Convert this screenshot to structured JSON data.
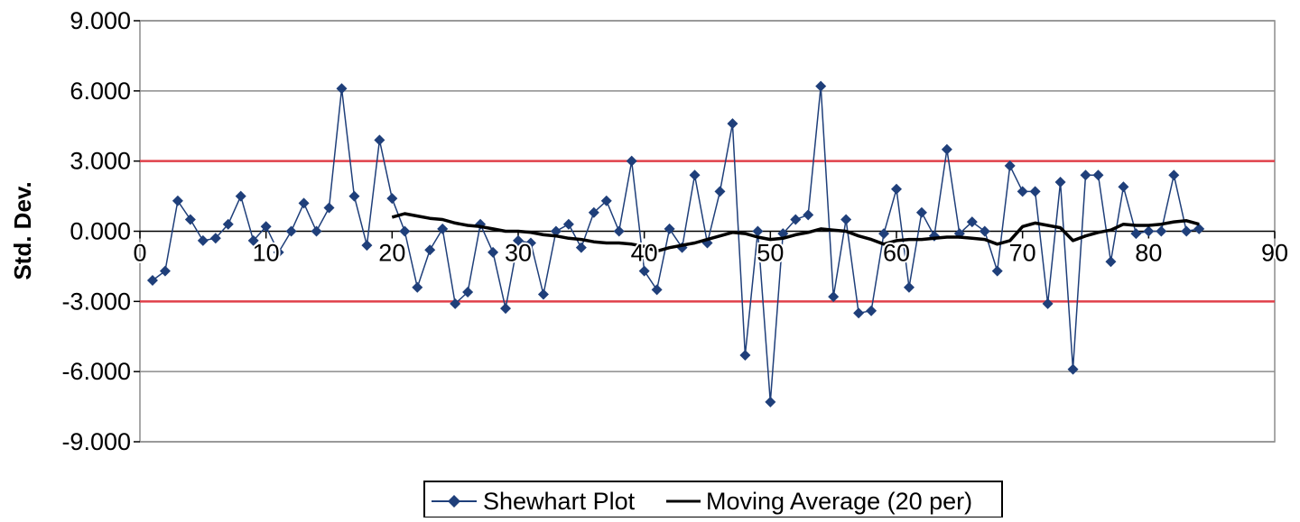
{
  "chart_data": {
    "type": "line",
    "title": "",
    "xlabel": "",
    "ylabel": "Std. Dev.",
    "xlim": [
      0,
      90
    ],
    "ylim": [
      -9,
      9
    ],
    "x_ticks": [
      0,
      10,
      20,
      30,
      40,
      50,
      60,
      70,
      80,
      90
    ],
    "x_tick_labels": [
      "0",
      "10",
      "20",
      "30",
      "40",
      "50",
      "60",
      "70",
      "80",
      "90"
    ],
    "y_ticks": [
      9,
      6,
      3,
      0,
      -3,
      -6,
      -9
    ],
    "y_tick_labels": [
      "9.000",
      "6.000",
      "3.000",
      "0.000",
      "-3.000",
      "-6.000",
      "-9.000"
    ],
    "grid": "horizontal",
    "legend_position": "bottom",
    "control_limits": [
      {
        "value": 3.0,
        "color": "#e0404a"
      },
      {
        "value": -3.0,
        "color": "#e0404a"
      }
    ],
    "series": [
      {
        "name": "Shewhart Plot",
        "color": "#1f3f7a",
        "marker": "diamond",
        "x": [
          1,
          2,
          3,
          4,
          5,
          6,
          7,
          8,
          9,
          10,
          11,
          12,
          13,
          14,
          15,
          16,
          17,
          18,
          19,
          20,
          21,
          22,
          23,
          24,
          25,
          26,
          27,
          28,
          29,
          30,
          31,
          32,
          33,
          34,
          35,
          36,
          37,
          38,
          39,
          40,
          41,
          42,
          43,
          44,
          45,
          46,
          47,
          48,
          49,
          50,
          51,
          52,
          53,
          54,
          55,
          56,
          57,
          58,
          59,
          60,
          61,
          62,
          63,
          64,
          65,
          66,
          67,
          68,
          69,
          70,
          71,
          72,
          73,
          74,
          75,
          76,
          77,
          78,
          79,
          80,
          81,
          82,
          83,
          84
        ],
        "y": [
          -2.1,
          -1.7,
          1.3,
          0.5,
          -0.4,
          -0.3,
          0.3,
          1.5,
          -0.4,
          0.2,
          -0.9,
          0.0,
          1.2,
          0.0,
          1.0,
          6.1,
          1.5,
          -0.6,
          3.9,
          1.4,
          0.0,
          -2.4,
          -0.8,
          0.1,
          -3.1,
          -2.6,
          0.3,
          -0.9,
          -3.3,
          -0.4,
          -0.5,
          -2.7,
          0.0,
          0.3,
          -0.7,
          0.8,
          1.3,
          0.0,
          3.0,
          -1.7,
          -2.5,
          0.1,
          -0.7,
          2.4,
          -0.5,
          1.7,
          4.6,
          -5.3,
          0.0,
          -7.3,
          -0.1,
          0.5,
          0.7,
          6.2,
          -2.8,
          0.5,
          -3.5,
          -3.4,
          -0.1,
          1.8,
          -2.4,
          0.8,
          -0.2,
          3.5,
          -0.1,
          0.4,
          0.0,
          -1.7,
          2.8,
          1.7,
          1.7,
          -3.1,
          2.1,
          -5.9,
          2.4,
          2.4,
          -1.3,
          1.9,
          -0.1,
          0.0,
          0.0,
          2.4,
          0.0,
          0.1
        ]
      },
      {
        "name": "Moving Average (20 per)",
        "color": "#000000",
        "marker": "none",
        "x": [
          20,
          21,
          22,
          23,
          24,
          25,
          26,
          27,
          28,
          29,
          30,
          31,
          32,
          33,
          34,
          35,
          36,
          37,
          38,
          39,
          40,
          41,
          42,
          43,
          44,
          45,
          46,
          47,
          48,
          49,
          50,
          51,
          52,
          53,
          54,
          55,
          56,
          57,
          58,
          59,
          60,
          61,
          62,
          63,
          64,
          65,
          66,
          67,
          68,
          69,
          70,
          71,
          72,
          73,
          74,
          75,
          76,
          77,
          78,
          79,
          80,
          81,
          82,
          83,
          84
        ],
        "y": [
          0.6,
          0.75,
          0.65,
          0.55,
          0.5,
          0.35,
          0.25,
          0.2,
          0.1,
          0.0,
          0.0,
          -0.05,
          -0.15,
          -0.2,
          -0.3,
          -0.35,
          -0.45,
          -0.5,
          -0.5,
          -0.55,
          -0.65,
          -0.85,
          -0.7,
          -0.6,
          -0.5,
          -0.35,
          -0.2,
          -0.05,
          -0.1,
          -0.25,
          -0.35,
          -0.3,
          -0.15,
          -0.05,
          0.1,
          0.05,
          0.0,
          -0.2,
          -0.35,
          -0.55,
          -0.4,
          -0.35,
          -0.35,
          -0.3,
          -0.25,
          -0.25,
          -0.3,
          -0.35,
          -0.55,
          -0.4,
          0.2,
          0.35,
          0.25,
          0.15,
          -0.4,
          -0.2,
          -0.05,
          0.05,
          0.3,
          0.25,
          0.25,
          0.3,
          0.4,
          0.45,
          0.3
        ]
      }
    ]
  }
}
